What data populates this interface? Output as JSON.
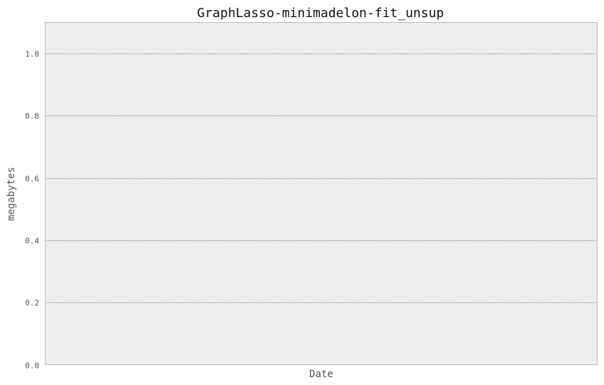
{
  "chart_data": {
    "type": "line",
    "title": "GraphLasso-minimadelon-fit_unsup",
    "xlabel": "Date",
    "ylabel": "megabytes",
    "ylim": [
      0,
      1.1
    ],
    "yticks": [
      0.0,
      0.2,
      0.4,
      0.6,
      0.8,
      1.0
    ],
    "ytick_labels": [
      "0.0",
      "0.2",
      "0.4",
      "0.6",
      "0.8",
      "1.0"
    ],
    "grid": "horizontal-dotted",
    "series": [],
    "colors": {
      "plot_background": "#ededed",
      "plot_border": "#bcbcbc",
      "grid": "#555555",
      "text": "#555555",
      "title": "#111111"
    }
  }
}
